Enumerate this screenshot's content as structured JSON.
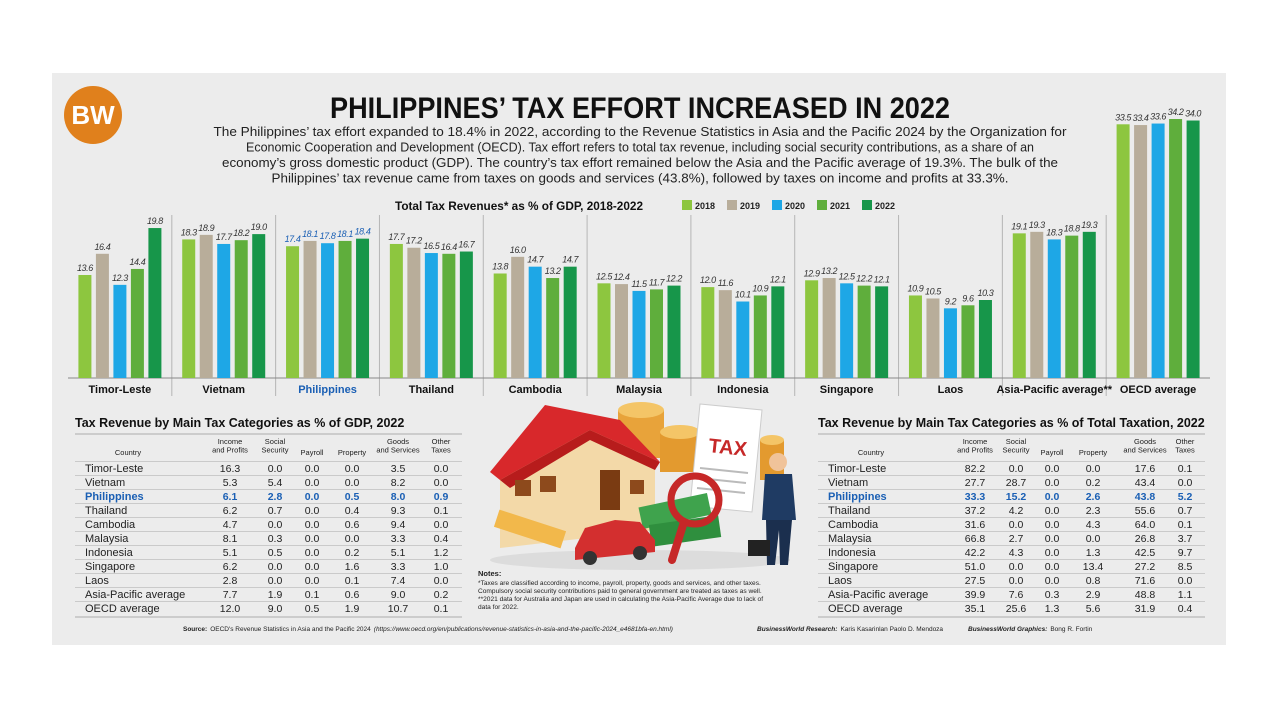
{
  "header": {
    "logo": "BW",
    "title": "PHILIPPINES’ TAX EFFORT INCREASED IN 2022",
    "intro": [
      "The Philippines’ tax effort expanded to 18.4% in 2022, according to the Revenue Statistics in Asia and the Pacific 2024 by the Organization for",
      "Economic Cooperation and Development (OECD). Tax effort refers to total tax revenue, including social security contributions, as a share of an",
      "economy’s gross domestic product (GDP). The country’s tax effort remained below the Asia and the Pacific average of 19.3%. The bulk of the",
      "Philippines’ tax revenue came from taxes on goods and services (43.8%), followed by taxes on income and profits at 33.3%."
    ]
  },
  "chart_data": {
    "type": "bar",
    "title": "Total Tax Revenues* as % of GDP, 2018-2022",
    "categories": [
      "Timor-Leste",
      "Vietnam",
      "Philippines",
      "Thailand",
      "Cambodia",
      "Malaysia",
      "Indonesia",
      "Singapore",
      "Laos",
      "Asia-Pacific average**",
      "OECD average"
    ],
    "highlight_index": 2,
    "highlight_color": "#1a5fb4",
    "series": [
      {
        "name": "2018",
        "color": "#8dc63f",
        "values": [
          13.6,
          18.3,
          17.4,
          17.7,
          13.8,
          12.5,
          12.0,
          12.9,
          10.9,
          19.1,
          33.5
        ],
        "value_labels": [
          "13.6",
          "18.3",
          "17.4",
          "17.7",
          "13.8",
          "12.5",
          "12.0",
          "12.9",
          "10.9",
          "19.1",
          "33.5"
        ]
      },
      {
        "name": "2019",
        "color": "#b8ad9a",
        "values": [
          16.4,
          18.9,
          18.1,
          17.2,
          16.0,
          12.4,
          11.6,
          13.2,
          10.5,
          19.3,
          33.4
        ],
        "value_labels": [
          "16.4",
          "18.9",
          "18.1",
          "17.2",
          "16.0",
          "12.4",
          "11.6",
          "13.2",
          "10.5",
          "19.3",
          "33.4"
        ]
      },
      {
        "name": "2020",
        "color": "#1ea7e6",
        "values": [
          12.3,
          17.7,
          17.8,
          16.5,
          14.7,
          11.5,
          10.1,
          12.5,
          9.2,
          18.3,
          33.6
        ],
        "value_labels": [
          "12.3",
          "17.7",
          "17.8",
          "16.5",
          "14.7",
          "11.5",
          "10.1",
          "12.5",
          "9.2",
          "18.3",
          "33.6"
        ]
      },
      {
        "name": "2021",
        "color": "#5fae3c",
        "values": [
          14.4,
          18.2,
          18.1,
          16.4,
          13.2,
          11.7,
          10.9,
          12.2,
          9.6,
          18.8,
          34.2
        ],
        "value_labels": [
          "14.4",
          "18.2",
          "18.1",
          "16.4",
          "13.2",
          "11.7",
          "10.9",
          "12.2",
          "9.6",
          "18.8",
          "34.2"
        ]
      },
      {
        "name": "2022",
        "color": "#17964a",
        "values": [
          19.8,
          19.0,
          18.4,
          16.7,
          14.7,
          12.2,
          12.1,
          12.1,
          10.3,
          19.3,
          34.0
        ],
        "value_labels": [
          "19.8",
          "19.0",
          "18.4",
          "16.7",
          "14.7",
          "12.2",
          "12.1",
          "12.1",
          "10.3",
          "19.3",
          "34.0"
        ]
      }
    ]
  },
  "tables": [
    {
      "title": "Tax Revenue by Main Tax Categories as % of GDP, 2022",
      "highlight_row": 2,
      "columns": [
        [
          "Country"
        ],
        [
          "Income",
          "and Profits"
        ],
        [
          "Social",
          "Security"
        ],
        [
          "Payroll"
        ],
        [
          "Property"
        ],
        [
          "Goods",
          "and Services"
        ],
        [
          "Other",
          "Taxes"
        ]
      ],
      "rows": [
        [
          "Timor-Leste",
          "16.3",
          "0.0",
          "0.0",
          "0.0",
          "3.5",
          "0.0"
        ],
        [
          "Vietnam",
          "5.3",
          "5.4",
          "0.0",
          "0.0",
          "8.2",
          "0.0"
        ],
        [
          "Philippines",
          "6.1",
          "2.8",
          "0.0",
          "0.5",
          "8.0",
          "0.9"
        ],
        [
          "Thailand",
          "6.2",
          "0.7",
          "0.0",
          "0.4",
          "9.3",
          "0.1"
        ],
        [
          "Cambodia",
          "4.7",
          "0.0",
          "0.0",
          "0.6",
          "9.4",
          "0.0"
        ],
        [
          "Malaysia",
          "8.1",
          "0.3",
          "0.0",
          "0.0",
          "3.3",
          "0.4"
        ],
        [
          "Indonesia",
          "5.1",
          "0.5",
          "0.0",
          "0.2",
          "5.1",
          "1.2"
        ],
        [
          "Singapore",
          "6.2",
          "0.0",
          "0.0",
          "1.6",
          "3.3",
          "1.0"
        ],
        [
          "Laos",
          "2.8",
          "0.0",
          "0.0",
          "0.1",
          "7.4",
          "0.0"
        ],
        [
          "Asia-Pacific average",
          "7.7",
          "1.9",
          "0.1",
          "0.6",
          "9.0",
          "0.2"
        ],
        [
          "OECD average",
          "12.0",
          "9.0",
          "0.5",
          "1.9",
          "10.7",
          "0.1"
        ]
      ]
    },
    {
      "title": "Tax Revenue by Main Tax Categories as % of Total Taxation, 2022",
      "highlight_row": 2,
      "columns": [
        [
          "Country"
        ],
        [
          "Income",
          "and Profits"
        ],
        [
          "Social",
          "Security"
        ],
        [
          "Payroll"
        ],
        [
          "Property"
        ],
        [
          "Goods",
          "and Services"
        ],
        [
          "Other",
          "Taxes"
        ]
      ],
      "rows": [
        [
          "Timor-Leste",
          "82.2",
          "0.0",
          "0.0",
          "0.0",
          "17.6",
          "0.1"
        ],
        [
          "Vietnam",
          "27.7",
          "28.7",
          "0.0",
          "0.2",
          "43.4",
          "0.0"
        ],
        [
          "Philippines",
          "33.3",
          "15.2",
          "0.0",
          "2.6",
          "43.8",
          "5.2"
        ],
        [
          "Thailand",
          "37.2",
          "4.2",
          "0.0",
          "2.3",
          "55.6",
          "0.7"
        ],
        [
          "Cambodia",
          "31.6",
          "0.0",
          "0.0",
          "4.3",
          "64.0",
          "0.1"
        ],
        [
          "Malaysia",
          "66.8",
          "2.7",
          "0.0",
          "0.0",
          "26.8",
          "3.7"
        ],
        [
          "Indonesia",
          "42.2",
          "4.3",
          "0.0",
          "1.3",
          "42.5",
          "9.7"
        ],
        [
          "Singapore",
          "51.0",
          "0.0",
          "0.0",
          "13.4",
          "27.2",
          "8.5"
        ],
        [
          "Laos",
          "27.5",
          "0.0",
          "0.0",
          "0.8",
          "71.6",
          "0.0"
        ],
        [
          "Asia-Pacific average",
          "39.9",
          "7.6",
          "0.3",
          "2.9",
          "48.8",
          "1.1"
        ],
        [
          "OECD average",
          "35.1",
          "25.6",
          "1.3",
          "5.6",
          "31.9",
          "0.4"
        ]
      ]
    }
  ],
  "illustration": {
    "sign": "TAX"
  },
  "notes": {
    "label": "Notes:",
    "lines": [
      "*Taxes are classified according to income, payroll, property, goods and services, and other taxes.",
      "Compulsory social security contributions paid to general government are treated as taxes as well.",
      "**2021 data for Australia and Japan are used in calculating the Asia-Pacific Average due to lack of",
      "data for 2022."
    ]
  },
  "footer": {
    "source": {
      "label": "Source:",
      "text": "OECD's Revenue Statistics in Asia and the Pacific 2024",
      "url": "(https://www.oecd.org/en/publications/revenue-statistics-in-asia-and-the-pacific-2024_e4681bfa-en.html)"
    },
    "research": {
      "label": "BusinessWorld Research:",
      "name": "Karis Kasarinlan Paolo D. Mendoza"
    },
    "graphics": {
      "label": "BusinessWorld Graphics:",
      "name": "Bong R. Fortin"
    }
  }
}
